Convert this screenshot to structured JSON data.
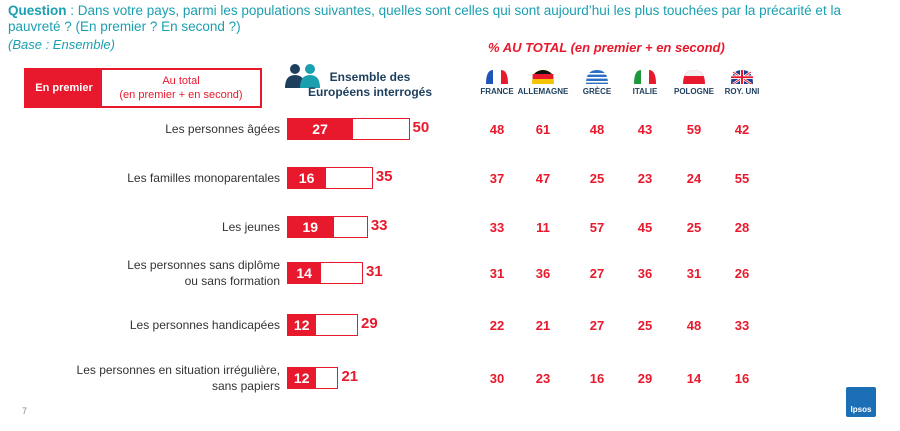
{
  "header": {
    "question_label": "Question",
    "question_text": " : Dans votre pays, parmi les populations suivantes, quelles sont celles qui sont aujourd’hui les plus touchées par la précarité et la pauvreté ? (En premier ? En second ?)",
    "base": "(Base : Ensemble)",
    "pct_title": "% AU TOTAL (en premier + en second)"
  },
  "legend": {
    "first": "En premier",
    "total_line1": "Au total",
    "total_line2": "(en premier + en second)"
  },
  "ensemble": {
    "line1": "Ensemble des",
    "line2": "Européens interrogés"
  },
  "countries": [
    {
      "name": "FRANCE",
      "flag": "france-flag-icon"
    },
    {
      "name": "ALLEMAGNE",
      "flag": "germany-flag-icon"
    },
    {
      "name": "GRÈCE",
      "flag": "greece-flag-icon"
    },
    {
      "name": "ITALIE",
      "flag": "italy-flag-icon"
    },
    {
      "name": "POLOGNE",
      "flag": "poland-flag-icon"
    },
    {
      "name": "ROY. UNI",
      "flag": "uk-flag-icon"
    }
  ],
  "chart_data": {
    "type": "bar",
    "categories": [
      [
        "Les personnes âgées"
      ],
      [
        "Les familles monoparentales"
      ],
      [
        "Les jeunes"
      ],
      [
        "Les personnes sans diplôme",
        "ou sans formation"
      ],
      [
        "Les personnes handicapées"
      ],
      [
        "Les personnes en situation irrégulière,",
        "sans papiers"
      ]
    ],
    "series": [
      {
        "name": "En premier",
        "values": [
          27,
          16,
          19,
          14,
          12,
          12
        ]
      },
      {
        "name": "Au total (en premier + en second)",
        "values": [
          50,
          35,
          33,
          31,
          29,
          21
        ]
      }
    ],
    "country_totals": [
      [
        48,
        61,
        48,
        43,
        59,
        42
      ],
      [
        37,
        47,
        25,
        23,
        24,
        55
      ],
      [
        33,
        11,
        57,
        45,
        25,
        28
      ],
      [
        31,
        36,
        27,
        36,
        31,
        26
      ],
      [
        22,
        21,
        27,
        25,
        48,
        33
      ],
      [
        30,
        23,
        16,
        29,
        14,
        16
      ]
    ]
  },
  "footer": {
    "page_number": "7",
    "logo_text": "Ipsos"
  },
  "colors": {
    "accent": "#e8192c",
    "teal": "#1a9fb0",
    "navy": "#1d3f5e"
  }
}
